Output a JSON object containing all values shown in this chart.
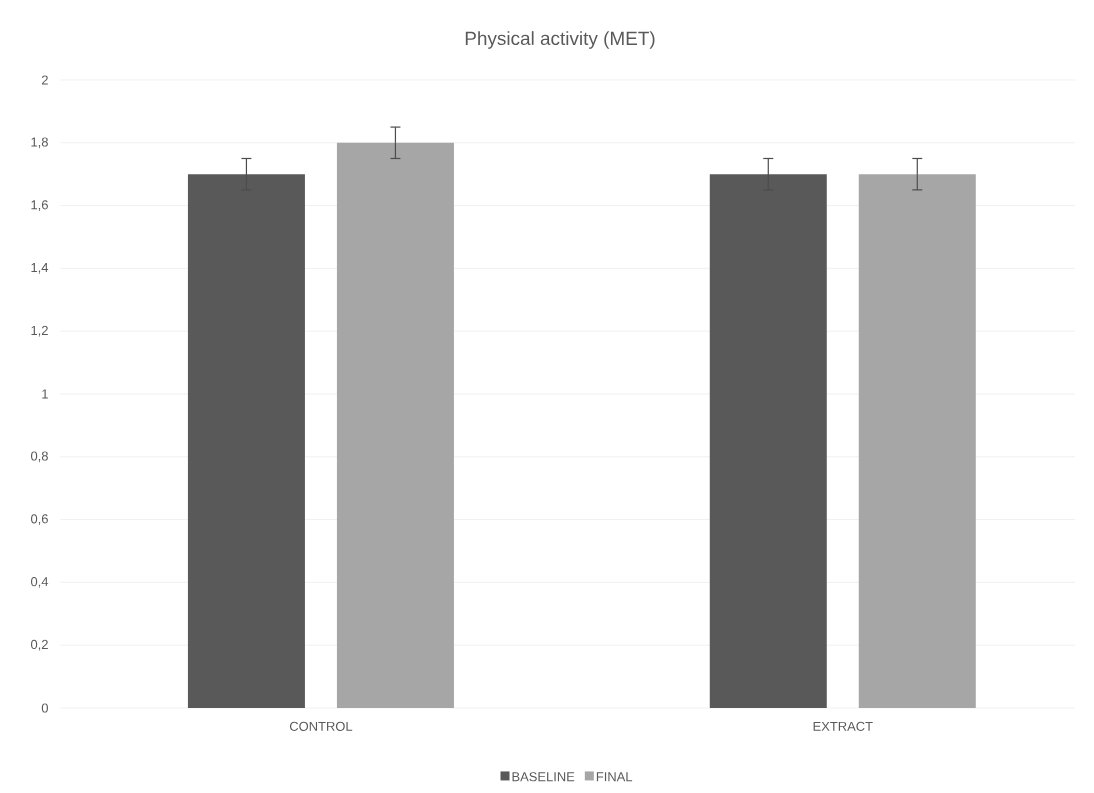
{
  "chart_data": {
    "type": "bar",
    "title": "Physical activity (MET)",
    "categories": [
      "CONTROL",
      "EXTRACT"
    ],
    "series": [
      {
        "name": "BASELINE",
        "color": "#595959",
        "values": [
          1.7,
          1.7
        ],
        "errors": [
          0.05,
          0.05
        ]
      },
      {
        "name": "FINAL",
        "color": "#a6a6a6",
        "values": [
          1.8,
          1.7
        ],
        "errors": [
          0.05,
          0.05
        ]
      }
    ],
    "ylim": [
      0,
      2
    ],
    "yticks": [
      0,
      {
        "value": 0.2,
        "label": "0,2"
      },
      {
        "value": 0.4,
        "label": "0,4"
      },
      {
        "value": 0.6,
        "label": "0,6"
      },
      {
        "value": 0.8,
        "label": "0,8"
      },
      1,
      {
        "value": 1.2,
        "label": "1,2"
      },
      {
        "value": 1.4,
        "label": "1,4"
      },
      {
        "value": 1.6,
        "label": "1,6"
      },
      {
        "value": 1.8,
        "label": "1,8"
      },
      2
    ],
    "grid": "y",
    "legend": "bottom"
  }
}
